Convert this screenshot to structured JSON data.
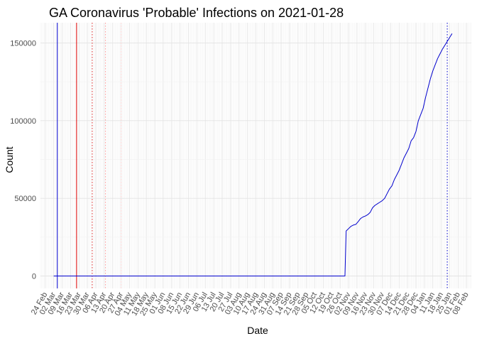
{
  "chart_data": {
    "type": "line",
    "title": "GA Coronavirus 'Probable' Infections on 2021-01-28",
    "xlabel": "Date",
    "ylabel": "Count",
    "grid": true,
    "legend": "none",
    "xlim": [
      "2020-02-20",
      "2021-02-12"
    ],
    "ylim": [
      -8000,
      163000
    ],
    "x_ticks": [
      {
        "date": "2020-02-24",
        "label": "24 Feb"
      },
      {
        "date": "2020-03-02",
        "label": "02 Mar"
      },
      {
        "date": "2020-03-09",
        "label": "09 Mar"
      },
      {
        "date": "2020-03-16",
        "label": "16 Mar"
      },
      {
        "date": "2020-03-23",
        "label": "23 Mar"
      },
      {
        "date": "2020-03-30",
        "label": "30 Mar"
      },
      {
        "date": "2020-04-06",
        "label": "06 Apr"
      },
      {
        "date": "2020-04-13",
        "label": "13 Apr"
      },
      {
        "date": "2020-04-20",
        "label": "20 Apr"
      },
      {
        "date": "2020-04-27",
        "label": "27 Apr"
      },
      {
        "date": "2020-05-04",
        "label": "04 May"
      },
      {
        "date": "2020-05-11",
        "label": "11 May"
      },
      {
        "date": "2020-05-18",
        "label": "18 May"
      },
      {
        "date": "2020-05-25",
        "label": "25 May"
      },
      {
        "date": "2020-06-01",
        "label": "01 Jun"
      },
      {
        "date": "2020-06-08",
        "label": "08 Jun"
      },
      {
        "date": "2020-06-15",
        "label": "15 Jun"
      },
      {
        "date": "2020-06-22",
        "label": "22 Jun"
      },
      {
        "date": "2020-06-29",
        "label": "29 Jun"
      },
      {
        "date": "2020-07-06",
        "label": "06 Jul"
      },
      {
        "date": "2020-07-13",
        "label": "13 Jul"
      },
      {
        "date": "2020-07-20",
        "label": "20 Jul"
      },
      {
        "date": "2020-07-27",
        "label": "27 Jul"
      },
      {
        "date": "2020-08-03",
        "label": "03 Aug"
      },
      {
        "date": "2020-08-10",
        "label": "10 Aug"
      },
      {
        "date": "2020-08-17",
        "label": "17 Aug"
      },
      {
        "date": "2020-08-24",
        "label": "24 Aug"
      },
      {
        "date": "2020-08-31",
        "label": "31 Aug"
      },
      {
        "date": "2020-09-07",
        "label": "07 Sep"
      },
      {
        "date": "2020-09-14",
        "label": "14 Sep"
      },
      {
        "date": "2020-09-21",
        "label": "21 Sep"
      },
      {
        "date": "2020-09-28",
        "label": "28 Sep"
      },
      {
        "date": "2020-10-05",
        "label": "05 Oct"
      },
      {
        "date": "2020-10-12",
        "label": "12 Oct"
      },
      {
        "date": "2020-10-19",
        "label": "19 Oct"
      },
      {
        "date": "2020-10-26",
        "label": "26 Oct"
      },
      {
        "date": "2020-11-02",
        "label": "02 Nov"
      },
      {
        "date": "2020-11-09",
        "label": "09 Nov"
      },
      {
        "date": "2020-11-16",
        "label": "16 Nov"
      },
      {
        "date": "2020-11-23",
        "label": "23 Nov"
      },
      {
        "date": "2020-11-30",
        "label": "30 Nov"
      },
      {
        "date": "2020-12-07",
        "label": "07 Dec"
      },
      {
        "date": "2020-12-14",
        "label": "14 Dec"
      },
      {
        "date": "2020-12-21",
        "label": "21 Dec"
      },
      {
        "date": "2020-12-28",
        "label": "28 Dec"
      },
      {
        "date": "2021-01-04",
        "label": "04 Jan"
      },
      {
        "date": "2021-01-11",
        "label": "11 Jan"
      },
      {
        "date": "2021-01-18",
        "label": "18 Jan"
      },
      {
        "date": "2021-01-25",
        "label": "25 Jan"
      },
      {
        "date": "2021-02-01",
        "label": "01 Feb"
      },
      {
        "date": "2021-02-08",
        "label": "08 Feb"
      }
    ],
    "y_ticks": [
      {
        "value": 0,
        "label": "0"
      },
      {
        "value": 50000,
        "label": "50000"
      },
      {
        "value": 100000,
        "label": "100000"
      },
      {
        "value": 150000,
        "label": "150000"
      }
    ],
    "series": [
      {
        "color": "#0000cd",
        "points": [
          {
            "x": "2020-03-02",
            "y": 0
          },
          {
            "x": "2020-10-30",
            "y": 0
          },
          {
            "x": "2020-10-31",
            "y": 29000
          },
          {
            "x": "2020-11-02",
            "y": 30500
          },
          {
            "x": "2020-11-04",
            "y": 32000
          },
          {
            "x": "2020-11-06",
            "y": 32800
          },
          {
            "x": "2020-11-08",
            "y": 33200
          },
          {
            "x": "2020-11-10",
            "y": 35000
          },
          {
            "x": "2020-11-12",
            "y": 37000
          },
          {
            "x": "2020-11-14",
            "y": 38000
          },
          {
            "x": "2020-11-16",
            "y": 38600
          },
          {
            "x": "2020-11-18",
            "y": 39500
          },
          {
            "x": "2020-11-20",
            "y": 41000
          },
          {
            "x": "2020-11-22",
            "y": 44000
          },
          {
            "x": "2020-11-24",
            "y": 45500
          },
          {
            "x": "2020-11-26",
            "y": 46500
          },
          {
            "x": "2020-11-28",
            "y": 47500
          },
          {
            "x": "2020-11-30",
            "y": 48500
          },
          {
            "x": "2020-12-02",
            "y": 50000
          },
          {
            "x": "2020-12-04",
            "y": 53000
          },
          {
            "x": "2020-12-06",
            "y": 56000
          },
          {
            "x": "2020-12-08",
            "y": 58000
          },
          {
            "x": "2020-12-10",
            "y": 62000
          },
          {
            "x": "2020-12-12",
            "y": 65000
          },
          {
            "x": "2020-12-14",
            "y": 68000
          },
          {
            "x": "2020-12-16",
            "y": 72000
          },
          {
            "x": "2020-12-18",
            "y": 76000
          },
          {
            "x": "2020-12-20",
            "y": 79000
          },
          {
            "x": "2020-12-22",
            "y": 82000
          },
          {
            "x": "2020-12-24",
            "y": 87000
          },
          {
            "x": "2020-12-26",
            "y": 89000
          },
          {
            "x": "2020-12-28",
            "y": 93000
          },
          {
            "x": "2020-12-30",
            "y": 100000
          },
          {
            "x": "2021-01-01",
            "y": 104000
          },
          {
            "x": "2021-01-03",
            "y": 108000
          },
          {
            "x": "2021-01-05",
            "y": 115000
          },
          {
            "x": "2021-01-07",
            "y": 121000
          },
          {
            "x": "2021-01-09",
            "y": 127000
          },
          {
            "x": "2021-01-11",
            "y": 132000
          },
          {
            "x": "2021-01-13",
            "y": 136000
          },
          {
            "x": "2021-01-15",
            "y": 140000
          },
          {
            "x": "2021-01-17",
            "y": 143000
          },
          {
            "x": "2021-01-19",
            "y": 146000
          },
          {
            "x": "2021-01-21",
            "y": 148500
          },
          {
            "x": "2021-01-23",
            "y": 151000
          },
          {
            "x": "2021-01-25",
            "y": 153500
          },
          {
            "x": "2021-01-27",
            "y": 156000
          }
        ]
      }
    ],
    "reference_lines": [
      {
        "x": "2020-03-05",
        "color": "#0000cd",
        "style": "solid"
      },
      {
        "x": "2020-03-21",
        "color": "#dd0000",
        "style": "solid"
      },
      {
        "x": "2020-04-03",
        "color": "#dd2222",
        "style": "dotted"
      },
      {
        "x": "2020-04-14",
        "color": "#ff9999",
        "style": "dotted"
      },
      {
        "x": "2020-04-27",
        "color": "#ffcccc",
        "style": "dotted"
      },
      {
        "x": "2021-01-23",
        "color": "#0000cd",
        "style": "dotted"
      }
    ]
  }
}
